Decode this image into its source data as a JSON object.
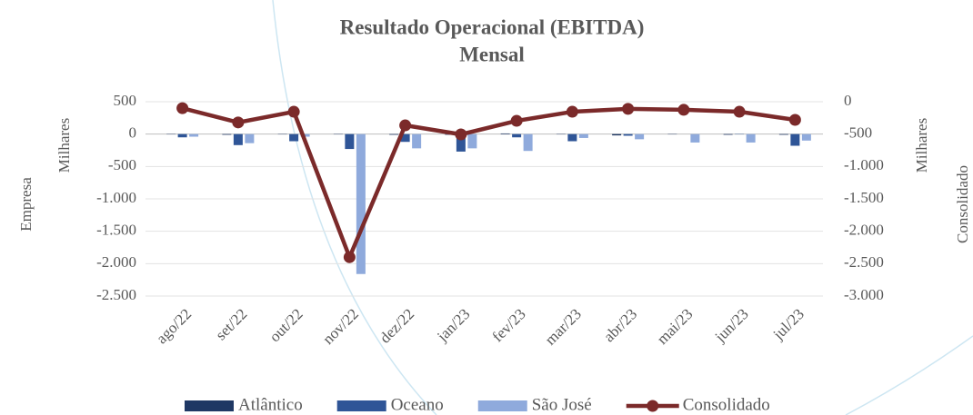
{
  "chart_data": {
    "type": "bar_line",
    "title_lines": [
      "Resultado Operacional (EBITDA)",
      "Mensal"
    ],
    "ylabel": "Empresa",
    "ylabel_unit": "Milhares",
    "y2label": "Consolidado",
    "y2label_unit": "Milhares",
    "categories": [
      "ago/22",
      "set/22",
      "out/22",
      "nov/22",
      "dez/22",
      "jan/23",
      "fev/23",
      "mar/23",
      "abr/23",
      "mai/23",
      "jun/23",
      "jul/23"
    ],
    "series": [
      {
        "name": "Atlântico",
        "type": "bar",
        "color": "#1f3864",
        "values": [
          -5,
          -10,
          -5,
          -5,
          -10,
          -10,
          10,
          -5,
          -20,
          -5,
          -10,
          -10
        ]
      },
      {
        "name": "Oceano",
        "type": "bar",
        "color": "#2f5597",
        "values": [
          -50,
          -170,
          -110,
          -230,
          -120,
          -270,
          -50,
          -110,
          -25,
          0,
          -5,
          -180
        ]
      },
      {
        "name": "São José",
        "type": "bar",
        "color": "#8faadc",
        "values": [
          -40,
          -140,
          -40,
          -2160,
          -220,
          -220,
          -260,
          -60,
          -80,
          -130,
          -130,
          -100
        ]
      },
      {
        "name": "Consolidado",
        "type": "line",
        "axis": "y2",
        "color": "#7b2a2a",
        "values": [
          -100,
          -320,
          -155,
          -2400,
          -365,
          -505,
          -295,
          -155,
          -110,
          -125,
          -155,
          -280
        ]
      }
    ],
    "ylim": [
      -2500,
      500
    ],
    "yticks": [
      500,
      0,
      -500,
      {
        "value": -1000,
        "label": "-1.000"
      },
      {
        "value": -1500,
        "label": "-1.500"
      },
      {
        "value": -2000,
        "label": "-2.000"
      },
      {
        "value": -2500,
        "label": "-2.500"
      }
    ],
    "y2lim": [
      -3000,
      0
    ],
    "y2ticks": [
      0,
      -500,
      {
        "value": -1000,
        "label": "-1.000"
      },
      {
        "value": -1500,
        "label": "-1.500"
      },
      {
        "value": -2000,
        "label": "-2.000"
      },
      {
        "value": -2500,
        "label": "-2.500"
      },
      {
        "value": -3000,
        "label": "-3.000"
      }
    ],
    "grid": true,
    "legend": "bottom"
  }
}
